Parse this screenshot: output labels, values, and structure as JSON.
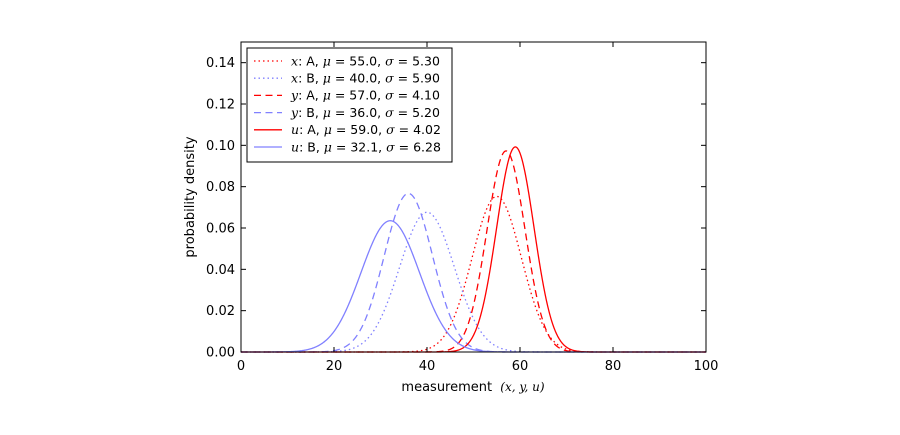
{
  "chart_data": {
    "type": "line",
    "xlabel": "measurement",
    "xlabel_math": "(x, y, u)",
    "ylabel": "probability density",
    "xlim": [
      0,
      100
    ],
    "ylim": [
      0,
      0.15
    ],
    "xticks": [
      0,
      20,
      40,
      60,
      80,
      100
    ],
    "xtick_labels": [
      "0",
      "20",
      "40",
      "60",
      "80",
      "100"
    ],
    "yticks": [
      0,
      0.02,
      0.04,
      0.06,
      0.08,
      0.1,
      0.12,
      0.14
    ],
    "ytick_labels": [
      "0.00",
      "0.02",
      "0.04",
      "0.06",
      "0.08",
      "0.10",
      "0.12",
      "0.14"
    ],
    "grid": false,
    "legend_position": "top-left",
    "colors": {
      "A": "#ff0000",
      "B": "#8080ff"
    },
    "series": [
      {
        "name": "x: A, μ=55.0, σ=5.30",
        "var": "x",
        "group": "A",
        "mu": 55.0,
        "sigma": 5.3,
        "style": "dotted",
        "color": "#ff0000",
        "legend": {
          "var": "x",
          "group": ": A, ",
          "mu_label": "μ",
          "eq": " = ",
          "mu": "55.0",
          "sigma_label": "σ",
          "sigma": "5.30"
        }
      },
      {
        "name": "x: B, μ=40.0, σ=5.90",
        "var": "x",
        "group": "B",
        "mu": 40.0,
        "sigma": 5.9,
        "style": "dotted",
        "color": "#8080ff",
        "legend": {
          "var": "x",
          "group": ": B, ",
          "mu_label": "μ",
          "eq": " = ",
          "mu": "40.0",
          "sigma_label": "σ",
          "sigma": "5.90"
        }
      },
      {
        "name": "y: A, μ=57.0, σ=4.10",
        "var": "y",
        "group": "A",
        "mu": 57.0,
        "sigma": 4.1,
        "style": "dashed",
        "color": "#ff0000",
        "legend": {
          "var": "y",
          "group": ": A, ",
          "mu_label": "μ",
          "eq": " = ",
          "mu": "57.0",
          "sigma_label": "σ",
          "sigma": "4.10"
        }
      },
      {
        "name": "y: B, μ=36.0, σ=5.20",
        "var": "y",
        "group": "B",
        "mu": 36.0,
        "sigma": 5.2,
        "style": "dashed",
        "color": "#8080ff",
        "legend": {
          "var": "y",
          "group": ": B, ",
          "mu_label": "μ",
          "eq": " = ",
          "mu": "36.0",
          "sigma_label": "σ",
          "sigma": "5.20"
        }
      },
      {
        "name": "u: A, μ=59.0, σ=4.02",
        "var": "u",
        "group": "A",
        "mu": 59.0,
        "sigma": 4.02,
        "style": "solid",
        "color": "#ff0000",
        "legend": {
          "var": "u",
          "group": ": A, ",
          "mu_label": "μ",
          "eq": " = ",
          "mu": "59.0",
          "sigma_label": "σ",
          "sigma": "4.02"
        }
      },
      {
        "name": "u: B, μ=32.1, σ=6.28",
        "var": "u",
        "group": "B",
        "mu": 32.1,
        "sigma": 6.28,
        "style": "solid",
        "color": "#8080ff",
        "legend": {
          "var": "u",
          "group": ": B, ",
          "mu_label": "μ",
          "eq": " = ",
          "mu": "32.1",
          "sigma_label": "σ",
          "sigma": "6.28"
        }
      }
    ]
  }
}
